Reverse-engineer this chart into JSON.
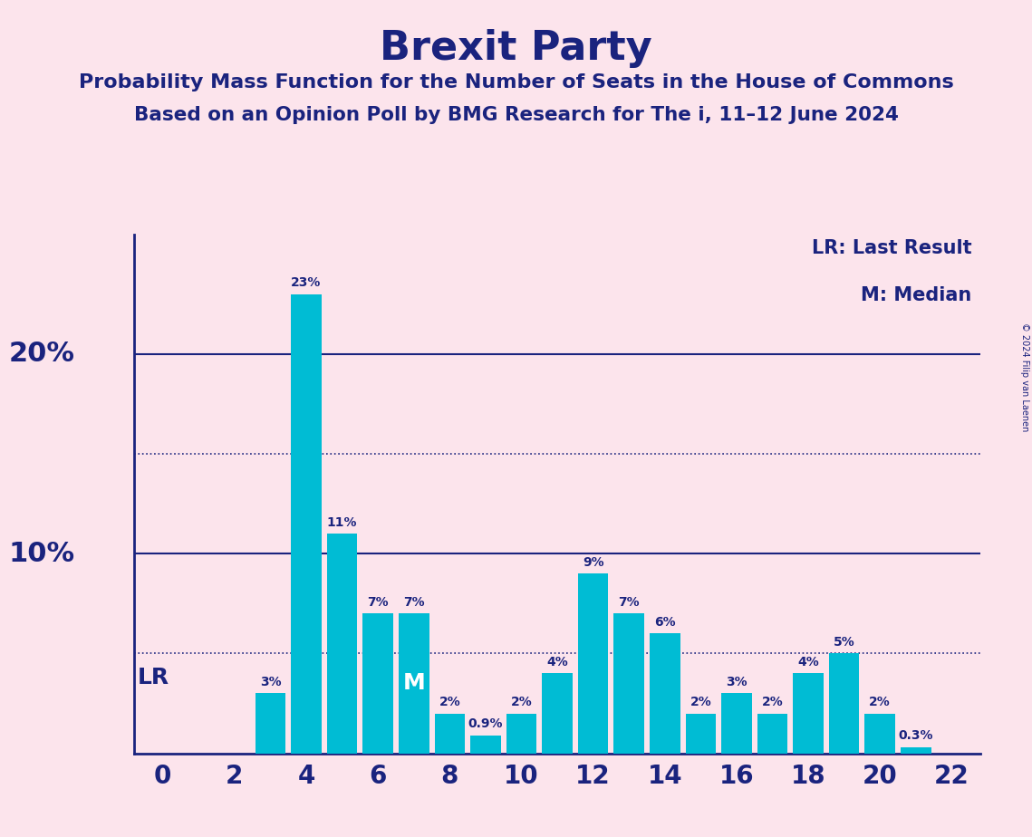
{
  "title": "Brexit Party",
  "subtitle1": "Probability Mass Function for the Number of Seats in the House of Commons",
  "subtitle2": "Based on an Opinion Poll by BMG Research for The i, 11–12 June 2024",
  "legend_lr": "LR: Last Result",
  "legend_m": "M: Median",
  "copyright": "© 2024 Filip van Laenen",
  "background_color": "#fce4ec",
  "bar_color": "#00bcd4",
  "title_color": "#1a237e",
  "seats": [
    0,
    1,
    2,
    3,
    4,
    5,
    6,
    7,
    8,
    9,
    10,
    11,
    12,
    13,
    14,
    15,
    16,
    17,
    18,
    19,
    20,
    21,
    22
  ],
  "probs": [
    0,
    0,
    0,
    3,
    23,
    11,
    7,
    7,
    2,
    0.9,
    2,
    4,
    9,
    7,
    6,
    2,
    3,
    2,
    4,
    5,
    2,
    0.3,
    0
  ],
  "lr_seat": 0,
  "median_seat": 7,
  "dotted_lines": [
    5,
    15
  ],
  "xlim": [
    -0.8,
    22.8
  ],
  "ylim": [
    0,
    26
  ],
  "xtick_positions": [
    0,
    2,
    4,
    6,
    8,
    10,
    12,
    14,
    16,
    18,
    20,
    22
  ],
  "label_fontsize": 10,
  "xtick_fontsize": 20,
  "ytick_fontsize": 22,
  "title_fontsize": 32,
  "subtitle_fontsize": 16,
  "legend_fontsize": 15,
  "bar_label_fontsize": 10
}
